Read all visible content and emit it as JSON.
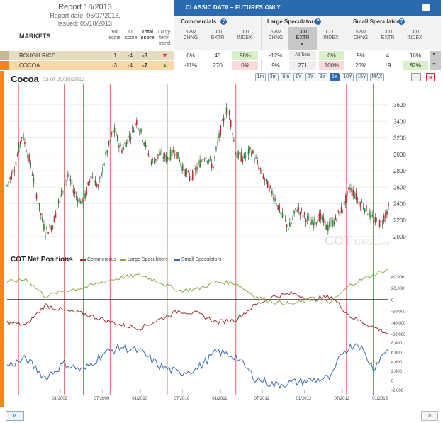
{
  "report": {
    "title": "Report 18/2013",
    "date": "Report date: 05/07/2013,",
    "issued": "issued: 05/10/2013"
  },
  "markets_table": {
    "markets_label": "MARKETS",
    "col_vol": "Vol score",
    "col_oi": "OI score",
    "col_total": "Total score",
    "col_trend": "Long-term trend",
    "rows": [
      {
        "name": "ROUGH RICE",
        "vol": "1",
        "oi": "-4",
        "total": "-3",
        "trend": "down"
      },
      {
        "name": "COCOA",
        "vol": "-3",
        "oi": "-4",
        "total": "-7",
        "trend": "up"
      }
    ]
  },
  "classic": {
    "title": "CLASSIC DATA – FUTURES ONLY",
    "groups": [
      "Commercials",
      "Large Speculators",
      "Small Speculators"
    ],
    "subcols": [
      "52W CHNG",
      "COT EXTR",
      "COT INDEX"
    ],
    "all_time": "All Time",
    "rows": [
      [
        "6%",
        "45",
        "98%",
        "-12%",
        "All Time",
        "0%",
        "9%",
        "4",
        "16%"
      ],
      [
        "-11%",
        "270",
        "0%",
        "9%",
        "271",
        "100%",
        "20%",
        "19",
        "82%"
      ]
    ]
  },
  "chart": {
    "title": "Cocoa",
    "as_of": "as of 05/10/2013",
    "ranges": [
      "1m",
      "3m",
      "6m",
      "1Y",
      "2Y",
      "3Y",
      "5Y",
      "10Y",
      "15Y",
      "MAX"
    ],
    "selected_range": "5Y",
    "watermark_cot": "COT",
    "watermark_base": "BASE",
    "watermark_com": ".com",
    "cot_title": "COT Net Positions",
    "legend": [
      "Commercials",
      "Large Speculators",
      "Small Speculators"
    ]
  },
  "chart_data": {
    "type": "line",
    "price_axis": {
      "ticks": [
        2000,
        2200,
        2400,
        2600,
        2800,
        3000,
        3200,
        3400,
        3600
      ]
    },
    "cot_axis": {
      "ticks": [
        "40,000",
        "20,000",
        "0",
        "-20,000",
        "-40,000",
        "-60,000"
      ]
    },
    "small_axis": {
      "ticks": [
        "8,000",
        "6,000",
        "4,000",
        "2,000",
        "0",
        "-2,000"
      ]
    },
    "x_ticks": [
      "01/2009",
      "07/2009",
      "01/2010",
      "07/2010",
      "01/2011",
      "07/2011",
      "01/2012",
      "07/2012",
      "01/2013"
    ],
    "price_path": [
      [
        0,
        2620
      ],
      [
        0.02,
        2850
      ],
      [
        0.04,
        3250
      ],
      [
        0.06,
        2900
      ],
      [
        0.08,
        2450
      ],
      [
        0.1,
        2050
      ],
      [
        0.12,
        2150
      ],
      [
        0.14,
        2500
      ],
      [
        0.16,
        2750
      ],
      [
        0.18,
        2500
      ],
      [
        0.2,
        2400
      ],
      [
        0.22,
        2750
      ],
      [
        0.24,
        2600
      ],
      [
        0.26,
        3000
      ],
      [
        0.28,
        3300
      ],
      [
        0.3,
        3050
      ],
      [
        0.32,
        3200
      ],
      [
        0.34,
        3400
      ],
      [
        0.36,
        3150
      ],
      [
        0.38,
        2900
      ],
      [
        0.4,
        3000
      ],
      [
        0.42,
        2950
      ],
      [
        0.44,
        3050
      ],
      [
        0.46,
        2850
      ],
      [
        0.48,
        2700
      ],
      [
        0.5,
        2850
      ],
      [
        0.52,
        3000
      ],
      [
        0.54,
        2850
      ],
      [
        0.56,
        3300
      ],
      [
        0.58,
        3600
      ],
      [
        0.6,
        3000
      ],
      [
        0.62,
        2950
      ],
      [
        0.64,
        3050
      ],
      [
        0.66,
        2850
      ],
      [
        0.68,
        2650
      ],
      [
        0.7,
        2500
      ],
      [
        0.72,
        2250
      ],
      [
        0.74,
        2100
      ],
      [
        0.76,
        2350
      ],
      [
        0.78,
        2250
      ],
      [
        0.8,
        2150
      ],
      [
        0.82,
        2250
      ],
      [
        0.84,
        2100
      ],
      [
        0.86,
        2200
      ],
      [
        0.88,
        2350
      ],
      [
        0.9,
        2600
      ],
      [
        0.92,
        2450
      ],
      [
        0.94,
        2350
      ],
      [
        0.96,
        2200
      ],
      [
        0.98,
        2150
      ],
      [
        1,
        2350
      ]
    ],
    "commercials_path": [
      [
        0,
        -40000
      ],
      [
        0.05,
        -45000
      ],
      [
        0.1,
        -10000
      ],
      [
        0.15,
        -20000
      ],
      [
        0.2,
        -25000
      ],
      [
        0.25,
        -35000
      ],
      [
        0.3,
        -45000
      ],
      [
        0.35,
        -50000
      ],
      [
        0.4,
        -35000
      ],
      [
        0.45,
        -20000
      ],
      [
        0.5,
        -25000
      ],
      [
        0.55,
        -40000
      ],
      [
        0.6,
        -35000
      ],
      [
        0.65,
        -10000
      ],
      [
        0.7,
        5000
      ],
      [
        0.75,
        10000
      ],
      [
        0.8,
        0
      ],
      [
        0.85,
        5000
      ],
      [
        0.9,
        -30000
      ],
      [
        0.95,
        -45000
      ],
      [
        1,
        -60000
      ]
    ],
    "large_spec_path": [
      [
        0,
        30000
      ],
      [
        0.05,
        35000
      ],
      [
        0.1,
        5000
      ],
      [
        0.15,
        15000
      ],
      [
        0.2,
        20000
      ],
      [
        0.25,
        30000
      ],
      [
        0.3,
        38000
      ],
      [
        0.35,
        42000
      ],
      [
        0.4,
        30000
      ],
      [
        0.45,
        15000
      ],
      [
        0.5,
        18000
      ],
      [
        0.55,
        30000
      ],
      [
        0.6,
        28000
      ],
      [
        0.65,
        5000
      ],
      [
        0.7,
        -5000
      ],
      [
        0.75,
        -8000
      ],
      [
        0.8,
        0
      ],
      [
        0.85,
        -5000
      ],
      [
        0.9,
        25000
      ],
      [
        0.95,
        40000
      ],
      [
        1,
        52000
      ]
    ],
    "small_spec_path": [
      [
        0,
        3000
      ],
      [
        0.05,
        4500
      ],
      [
        0.1,
        500
      ],
      [
        0.15,
        3500
      ],
      [
        0.2,
        2000
      ],
      [
        0.25,
        5500
      ],
      [
        0.3,
        7000
      ],
      [
        0.35,
        6000
      ],
      [
        0.4,
        3000
      ],
      [
        0.45,
        1500
      ],
      [
        0.5,
        2500
      ],
      [
        0.55,
        6000
      ],
      [
        0.6,
        5000
      ],
      [
        0.65,
        500
      ],
      [
        0.7,
        -1000
      ],
      [
        0.75,
        -500
      ],
      [
        0.8,
        0
      ],
      [
        0.85,
        500
      ],
      [
        0.88,
        6000
      ],
      [
        0.92,
        8000
      ],
      [
        0.96,
        2500
      ],
      [
        1,
        7000
      ]
    ],
    "signal_lines_x": [
      0.03,
      0.15,
      0.2,
      0.27,
      0.42,
      0.6,
      0.89,
      0.96
    ]
  },
  "colors": {
    "header_blue": "#2a6ab0",
    "commercials": "#a03030",
    "large_spec": "#8aaa4a",
    "small_spec": "#3a6ab0",
    "signal": "#e04040",
    "accent_orange": "#f0871e"
  }
}
